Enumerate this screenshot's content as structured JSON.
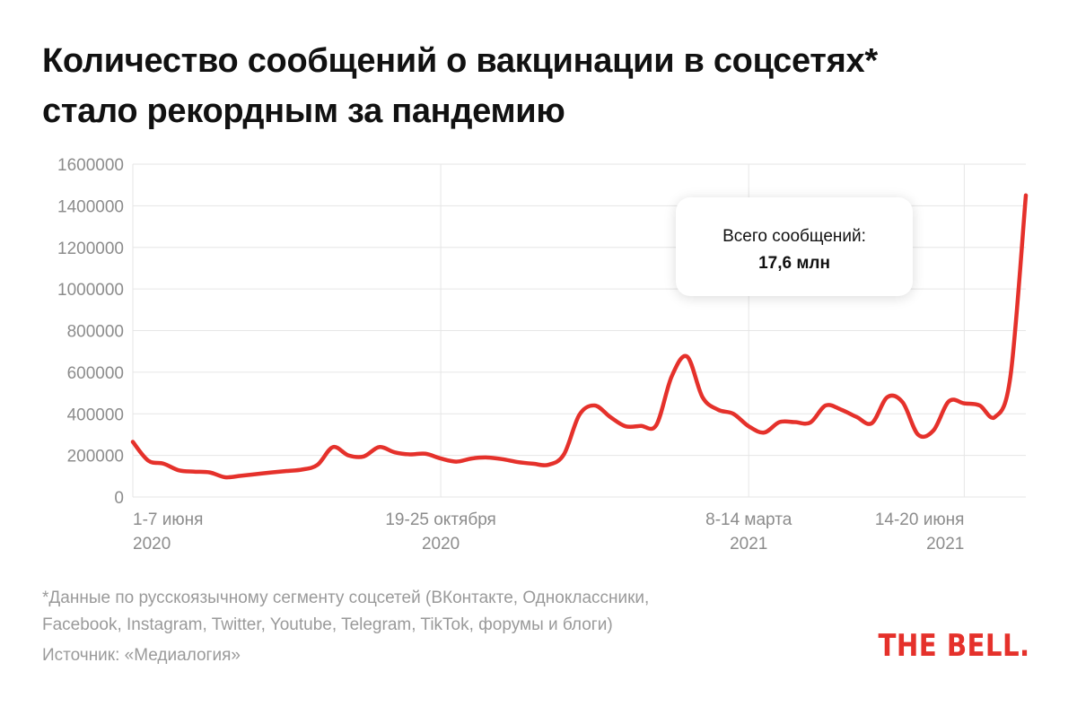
{
  "title_lines": [
    "Количество сообщений о вакцинации в соцсетях*",
    "стало рекордным за пандемию"
  ],
  "callout": {
    "label": "Всего сообщений:",
    "value": "17,6 млн"
  },
  "footnote_lines": [
    "*Данные по русскоязычному сегменту соцсетей (ВКонтакте, Одноклассники,",
    "Facebook, Instagram, Twitter, Youtube, Telegram, TikTok, форумы и блоги)"
  ],
  "source": "Источник: «Медиалогия»",
  "logo": "THE BELL.",
  "colors": {
    "line": "#e5312b",
    "grid": "#e6e6e6",
    "axis_text": "#8c8c8c"
  },
  "chart_data": {
    "type": "line",
    "title": "Количество сообщений о вакцинации в соцсетях* стало рекордным за пандемию",
    "ylim": [
      0,
      1600000
    ],
    "yticks": [
      0,
      200000,
      400000,
      600000,
      800000,
      1000000,
      1200000,
      1400000,
      1600000
    ],
    "ytick_labels": [
      "0",
      "200000",
      "400000",
      "600000",
      "800000",
      "1000000",
      "1200000",
      "1400000",
      "1600000"
    ],
    "x_ticks": [
      {
        "week": 0,
        "label": "1-7 июня",
        "year": "2020"
      },
      {
        "week": 20,
        "label": "19-25 октября",
        "year": "2020"
      },
      {
        "week": 40,
        "label": "8-14 марта",
        "year": "2021"
      },
      {
        "week": 54,
        "label": "14-20 июня",
        "year": "2021"
      }
    ],
    "x_grid_weeks": [
      0,
      20,
      40,
      54
    ],
    "grid": true,
    "series": [
      {
        "weekly_values": [
          265000,
          175000,
          160000,
          128000,
          122000,
          118000,
          95000,
          102000,
          110000,
          118000,
          125000,
          132000,
          155000,
          240000,
          200000,
          195000,
          240000,
          215000,
          205000,
          208000,
          185000,
          170000,
          185000,
          190000,
          182000,
          168000,
          160000,
          155000,
          205000,
          395000,
          440000,
          385000,
          340000,
          342000,
          346000,
          580000,
          675000,
          480000,
          420000,
          400000,
          340000,
          310000,
          360000,
          360000,
          358000,
          440000,
          420000,
          385000,
          355000,
          480000,
          455000,
          300000,
          320000,
          460000,
          450000,
          440000,
          385000,
          580000,
          1450000
        ]
      }
    ]
  }
}
